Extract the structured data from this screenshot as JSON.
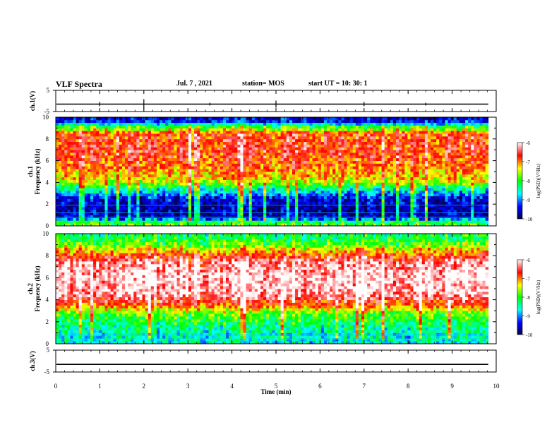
{
  "header": {
    "title": "VLF Spectra",
    "date": "Jul. 7 , 2021",
    "station": "station= MOS",
    "start_ut": "start UT =  10: 30: 1"
  },
  "chart_data": [
    {
      "type": "line",
      "panel": "ch1-voltage",
      "ylabel": "ch.1(V)",
      "ylim": [
        -5,
        5
      ],
      "yticks": [
        "5",
        "-5"
      ],
      "x": [
        0,
        10
      ],
      "y": [
        -1.5,
        -1.5
      ]
    },
    {
      "type": "heatmap",
      "panel": "ch1-spectrogram",
      "ylabel_line1": "ch.1",
      "ylabel_line2": "Frequency (kHz)",
      "xlim": [
        0,
        10
      ],
      "ylim": [
        0,
        10
      ],
      "yticks": [
        "0",
        "2",
        "4",
        "6",
        "8",
        "10"
      ],
      "colorbar": {
        "label": "log(PSD)(V²/Hz)",
        "range": [
          -10,
          -6
        ],
        "ticks": [
          "-6",
          "-7",
          "-8",
          "-9",
          "-10"
        ]
      },
      "data_end_min": 9.82,
      "frequency_profile_log_psd": [
        {
          "f": 0.3,
          "v": -7.9
        },
        {
          "f": 0.8,
          "v": -9.6
        },
        {
          "f": 1.5,
          "v": -9.7
        },
        {
          "f": 2.5,
          "v": -9.5
        },
        {
          "f": 3.3,
          "v": -8.6
        },
        {
          "f": 4.2,
          "v": -7.4
        },
        {
          "f": 5.5,
          "v": -6.9
        },
        {
          "f": 7.0,
          "v": -6.7
        },
        {
          "f": 8.5,
          "v": -6.8
        },
        {
          "f": 9.2,
          "v": -8.2
        },
        {
          "f": 9.7,
          "v": -9.5
        }
      ]
    },
    {
      "type": "heatmap",
      "panel": "ch2-spectrogram",
      "ylabel_line1": "ch.2",
      "ylabel_line2": "Frequency (kHz)",
      "xlim": [
        0,
        10
      ],
      "ylim": [
        0,
        10
      ],
      "yticks": [
        "0",
        "2",
        "4",
        "6",
        "8",
        "10"
      ],
      "colorbar": {
        "label": "log(PSD)(V²/Hz)",
        "range": [
          -10,
          -6
        ],
        "ticks": [
          "-6",
          "-7",
          "-8",
          "-9",
          "-10"
        ]
      },
      "data_end_min": 9.82,
      "frequency_profile_log_psd": [
        {
          "f": 0.3,
          "v": -8.6
        },
        {
          "f": 1.5,
          "v": -8.4
        },
        {
          "f": 2.8,
          "v": -7.8
        },
        {
          "f": 3.5,
          "v": -6.9
        },
        {
          "f": 4.5,
          "v": -6.2
        },
        {
          "f": 6.0,
          "v": -6.05
        },
        {
          "f": 7.5,
          "v": -6.3
        },
        {
          "f": 8.3,
          "v": -7.0
        },
        {
          "f": 9.0,
          "v": -7.8
        },
        {
          "f": 9.7,
          "v": -8.2
        }
      ]
    },
    {
      "type": "line",
      "panel": "ch3-voltage",
      "ylabel": "ch.3(V)",
      "ylim": [
        -5,
        5
      ],
      "yticks": [
        "5",
        "-5"
      ],
      "x": [
        0,
        10
      ],
      "y": [
        -1.5,
        -1.5
      ]
    }
  ],
  "xaxis": {
    "label": "Time (min)",
    "ticks": [
      "0",
      "1",
      "2",
      "3",
      "4",
      "5",
      "6",
      "7",
      "8",
      "9",
      "10"
    ]
  },
  "colors": {
    "colormap": [
      "#000050",
      "#0000ff",
      "#00ffff",
      "#00ff00",
      "#ffff00",
      "#ff0000",
      "#ffffff"
    ]
  }
}
